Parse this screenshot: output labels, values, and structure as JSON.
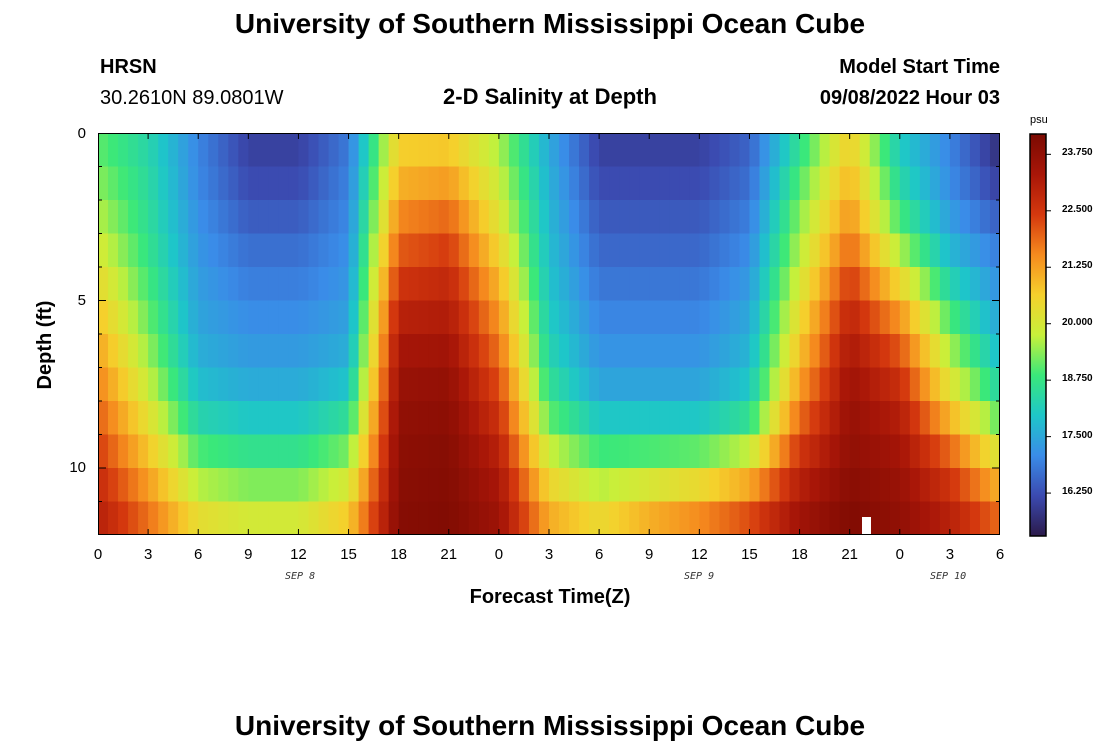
{
  "header": {
    "title": "University of Southern Mississippi Ocean Cube",
    "station": "HRSN",
    "coords": "30.2610N  89.0801W",
    "subtitle": "2-D Salinity at Depth",
    "model_label": "Model Start Time",
    "model_time": "09/08/2022 Hour 03"
  },
  "footer_title": "University of Southern Mississippi Ocean Cube",
  "colorbar": {
    "unit": "psu",
    "ticks": [
      "23.750",
      "22.500",
      "21.250",
      "20.000",
      "18.750",
      "17.500",
      "16.250"
    ],
    "tick_values": [
      23.75,
      22.5,
      21.25,
      20.0,
      18.75,
      17.5,
      16.25
    ],
    "range": [
      15.3,
      24.2
    ],
    "colors": [
      "#2b1a4a",
      "#3b4ab0",
      "#3a8ce8",
      "#1ec6c9",
      "#3ae87a",
      "#c8f03a",
      "#f5d02c",
      "#f58a1e",
      "#d4380e",
      "#a81608",
      "#7a0a02"
    ]
  },
  "chart_data": {
    "type": "heatmap",
    "title": "2-D Salinity at Depth",
    "xlabel": "Forecast Time(Z)",
    "ylabel": "Depth (ft)",
    "x_tick_labels": [
      "0",
      "3",
      "6",
      "9",
      "12",
      "15",
      "18",
      "21",
      "0",
      "3",
      "6",
      "9",
      "12",
      "15",
      "18",
      "21",
      "0",
      "3",
      "6"
    ],
    "x_range_hours": [
      0,
      54
    ],
    "y_tick_labels": [
      "0",
      "5",
      "10"
    ],
    "y_tick_values": [
      0,
      5,
      10
    ],
    "ylim": [
      0,
      12
    ],
    "dates": [
      {
        "label": "SEP 8",
        "hour": 12
      },
      {
        "label": "SEP 9",
        "hour": 36
      },
      {
        "label": "SEP 10",
        "hour": 51
      }
    ],
    "unit": "psu",
    "value_range": [
      15.3,
      24.2
    ],
    "depth_levels_ft": [
      0,
      1,
      2,
      3,
      4,
      5,
      6,
      7,
      8,
      9,
      10,
      11,
      12
    ],
    "sample_hours": [
      0,
      3,
      6,
      9,
      12,
      15,
      18,
      21,
      24,
      27,
      30,
      33,
      36,
      39,
      42,
      45,
      48,
      51,
      54
    ],
    "salinity_psu": [
      [
        19.0,
        18.3,
        17.0,
        16.0,
        16.0,
        16.8,
        20.5,
        20.5,
        19.5,
        17.5,
        16.0,
        16.0,
        16.0,
        16.5,
        18.5,
        20.5,
        18.0,
        17.0,
        15.6
      ],
      [
        19.2,
        18.4,
        17.0,
        16.1,
        16.1,
        16.9,
        20.8,
        21.0,
        19.7,
        17.6,
        16.1,
        16.1,
        16.1,
        16.6,
        18.8,
        20.8,
        18.2,
        17.0,
        15.8
      ],
      [
        19.5,
        18.5,
        17.1,
        16.3,
        16.3,
        17.0,
        21.3,
        21.6,
        20.0,
        17.7,
        16.3,
        16.3,
        16.3,
        16.8,
        19.2,
        21.2,
        18.6,
        17.2,
        16.2
      ],
      [
        19.8,
        18.6,
        17.2,
        16.6,
        16.6,
        17.1,
        21.8,
        22.2,
        20.3,
        17.8,
        16.5,
        16.5,
        16.5,
        17.0,
        19.5,
        21.6,
        19.2,
        17.5,
        16.7
      ],
      [
        20.2,
        18.8,
        17.3,
        16.8,
        16.8,
        17.2,
        22.3,
        22.6,
        20.8,
        17.9,
        16.7,
        16.7,
        16.7,
        17.2,
        19.8,
        22.2,
        20.0,
        18.0,
        17.0
      ],
      [
        20.6,
        19.0,
        17.4,
        17.0,
        17.0,
        17.3,
        22.8,
        23.0,
        21.2,
        18.0,
        16.9,
        16.9,
        16.9,
        17.4,
        20.2,
        22.7,
        21.0,
        18.6,
        17.3
      ],
      [
        21.0,
        19.3,
        17.5,
        17.2,
        17.2,
        17.5,
        23.2,
        23.3,
        21.6,
        18.2,
        17.1,
        17.1,
        17.1,
        17.6,
        20.6,
        23.1,
        21.8,
        19.3,
        17.6
      ],
      [
        21.4,
        19.6,
        17.7,
        17.4,
        17.4,
        17.7,
        23.5,
        23.6,
        22.0,
        18.4,
        17.3,
        17.3,
        17.3,
        17.8,
        21.0,
        23.4,
        22.4,
        19.8,
        18.0
      ],
      [
        21.8,
        20.0,
        18.0,
        17.7,
        17.7,
        18.2,
        23.7,
        23.8,
        22.4,
        18.8,
        17.6,
        17.6,
        17.6,
        18.2,
        21.5,
        23.6,
        22.9,
        20.5,
        18.6
      ],
      [
        22.2,
        20.5,
        18.6,
        18.3,
        18.3,
        18.9,
        23.8,
        23.9,
        22.8,
        19.4,
        18.4,
        18.4,
        18.4,
        19.0,
        22.2,
        23.7,
        23.3,
        21.5,
        19.5
      ],
      [
        22.6,
        21.0,
        19.3,
        19.0,
        19.0,
        19.6,
        23.9,
        24.0,
        23.2,
        20.2,
        19.3,
        19.5,
        19.8,
        20.5,
        22.8,
        23.8,
        23.5,
        22.3,
        20.5
      ],
      [
        22.9,
        21.6,
        20.0,
        19.6,
        19.6,
        20.4,
        23.9,
        24.0,
        23.4,
        20.8,
        20.0,
        20.6,
        21.0,
        21.8,
        23.3,
        24.0,
        23.7,
        22.8,
        21.5
      ],
      [
        23.2,
        22.0,
        20.6,
        20.3,
        20.3,
        21.0,
        24.0,
        24.1,
        23.6,
        21.4,
        20.8,
        21.5,
        22.0,
        22.6,
        23.6,
        24.1,
        23.8,
        23.2,
        22.2
      ]
    ]
  }
}
